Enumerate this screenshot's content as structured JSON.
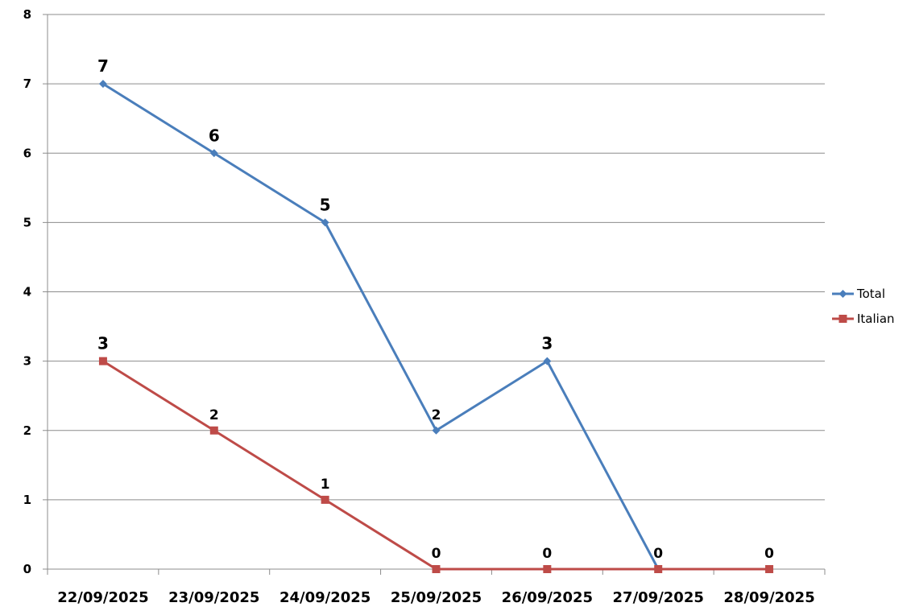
{
  "chart_data": {
    "type": "line",
    "categories": [
      "22/09/2025",
      "23/09/2025",
      "24/09/2025",
      "25/09/2025",
      "26/09/2025",
      "27/09/2025",
      "28/09/2025"
    ],
    "series": [
      {
        "name": "Total",
        "values": [
          7,
          6,
          5,
          2,
          3,
          0,
          null
        ],
        "color": "#4a7ebb",
        "marker": "diamond",
        "labels": [
          "7",
          "6",
          "5",
          "2",
          "3",
          "0",
          "0"
        ]
      },
      {
        "name": "Italian",
        "values": [
          3,
          2,
          1,
          0,
          0,
          0,
          0
        ],
        "color": "#be4b48",
        "marker": "square",
        "labels": [
          "3",
          "2",
          "1",
          "0",
          "0",
          "",
          ""
        ]
      }
    ],
    "ylim": [
      0,
      8
    ],
    "yticks": [
      "0",
      "1",
      "2",
      "3",
      "4",
      "5",
      "6",
      "7",
      "8"
    ],
    "grid": true,
    "legend_position": "right"
  }
}
